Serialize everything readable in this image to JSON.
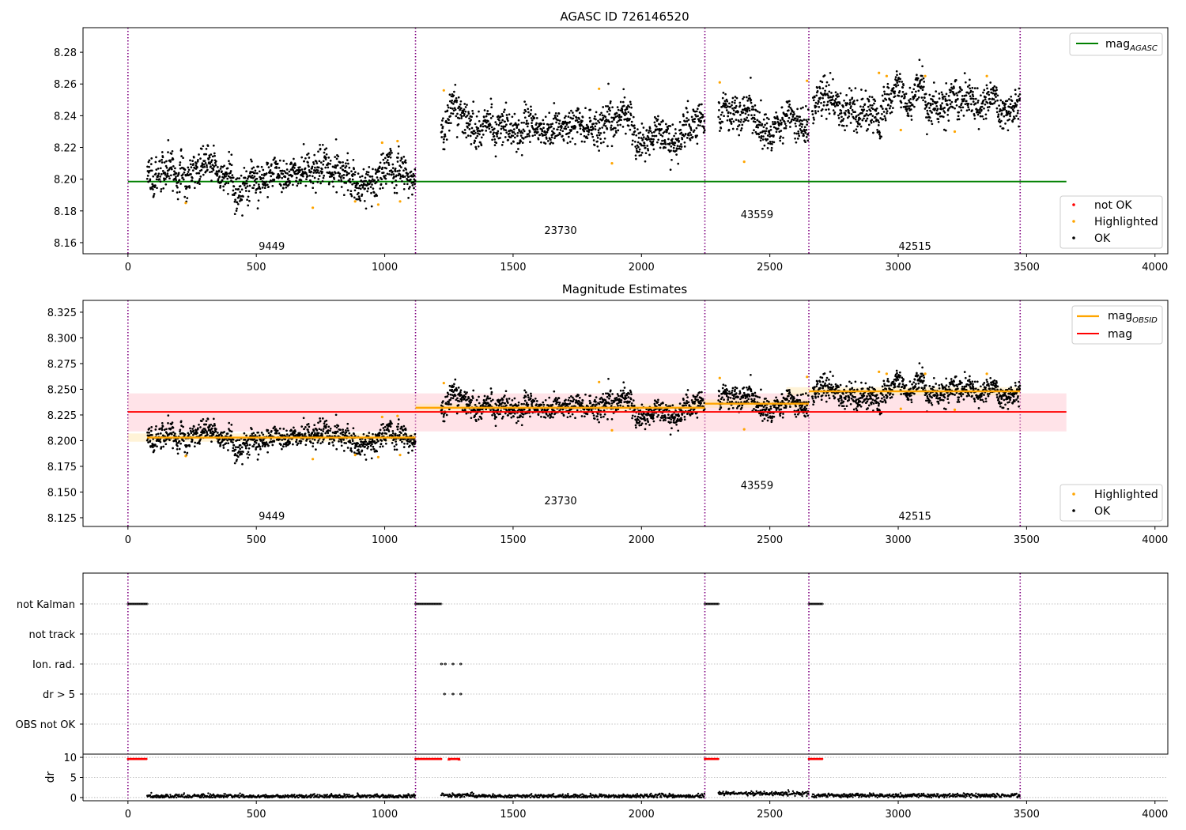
{
  "colors": {
    "ok": "#000000",
    "highlighted": "#ffa500",
    "not_ok": "#ff0000",
    "agasc": "#008000",
    "obsid": "#ffa500",
    "mag": "#ff0000",
    "obs_line": "#800080",
    "band": "#ffc0cb"
  },
  "chart_data": [
    {
      "type": "scatter",
      "title": "AGASC ID 726146520",
      "xlim": [
        -175,
        4050
      ],
      "ylim": [
        8.153,
        8.2955
      ],
      "xticks": [
        0,
        500,
        1000,
        1500,
        2000,
        2500,
        3000,
        3500,
        4000
      ],
      "yticks": [
        8.16,
        8.18,
        8.2,
        8.22,
        8.24,
        8.26,
        8.28
      ],
      "obs_boundaries": [
        0,
        1120,
        2247,
        2652,
        3475
      ],
      "obs_segments": [
        {
          "start": 75,
          "end": 1120,
          "mag": 8.203
        },
        {
          "start": 1220,
          "end": 2247,
          "mag": 8.232
        },
        {
          "start": 2300,
          "end": 2652,
          "mag": 8.236
        },
        {
          "start": 2665,
          "end": 3475,
          "mag": 8.248
        }
      ],
      "obsids": [
        {
          "label": "9449",
          "x": 560,
          "y": 8.158
        },
        {
          "label": "23730",
          "x": 1685,
          "y": 8.168
        },
        {
          "label": "43559",
          "x": 2450,
          "y": 8.178
        },
        {
          "label": "42515",
          "x": 3065,
          "y": 8.158
        }
      ],
      "agasc_mag": {
        "value": 8.1985,
        "x_end": 3655
      },
      "highlighted_points": [
        [
          225,
          8.185
        ],
        [
          720,
          8.182
        ],
        [
          885,
          8.186
        ],
        [
          975,
          8.184
        ],
        [
          990,
          8.223
        ],
        [
          1050,
          8.224
        ],
        [
          1060,
          8.186
        ],
        [
          1230,
          8.256
        ],
        [
          1835,
          8.257
        ],
        [
          1885,
          8.21
        ],
        [
          2305,
          8.261
        ],
        [
          2400,
          8.211
        ],
        [
          2645,
          8.262
        ],
        [
          2925,
          8.267
        ],
        [
          2955,
          8.265
        ],
        [
          3010,
          8.231
        ],
        [
          3105,
          8.265
        ],
        [
          3220,
          8.23
        ],
        [
          3345,
          8.265
        ]
      ],
      "legend_lines": [
        {
          "label": "mag",
          "sub": "AGASC"
        }
      ],
      "legend_points": [
        "not OK",
        "Highlighted",
        "OK"
      ]
    },
    {
      "type": "scatter",
      "title": "Magnitude Estimates",
      "xlim": [
        -175,
        4050
      ],
      "ylim": [
        8.1165,
        8.3365
      ],
      "xticks": [
        0,
        500,
        1000,
        1500,
        2000,
        2500,
        3000,
        3500,
        4000
      ],
      "yticks": [
        8.125,
        8.15,
        8.175,
        8.2,
        8.225,
        8.25,
        8.275,
        8.3,
        8.325
      ],
      "mag": {
        "value": 8.228,
        "band": [
          8.209,
          8.246
        ],
        "x_end": 3655
      },
      "obsids": [
        {
          "label": "9449",
          "x": 560,
          "y": 8.127
        },
        {
          "label": "23730",
          "x": 1685,
          "y": 8.142
        },
        {
          "label": "43559",
          "x": 2450,
          "y": 8.157
        },
        {
          "label": "42515",
          "x": 3065,
          "y": 8.127
        }
      ],
      "legend_lines": [
        {
          "label": "mag",
          "sub": "OBSID"
        },
        {
          "label": "mag",
          "sub": ""
        }
      ],
      "legend_points": [
        "Highlighted",
        "OK"
      ]
    },
    {
      "type": "scatter",
      "title": "",
      "flag_labels": [
        "not Kalman",
        "not track",
        "Ion. rad.",
        "dr > 5",
        "OBS not OK"
      ],
      "flag_intervals": {
        "not Kalman": [
          [
            0,
            75
          ],
          [
            1120,
            1220
          ],
          [
            2247,
            2300
          ],
          [
            2652,
            2705
          ]
        ],
        "not track": [],
        "Ion. rad.": [
          [
            1220,
            1222
          ],
          [
            1235,
            1237
          ],
          [
            1265,
            1267
          ],
          [
            1295,
            1297
          ]
        ],
        "dr > 5": [
          [
            1232,
            1234
          ],
          [
            1265,
            1267
          ],
          [
            1295,
            1297
          ]
        ],
        "OBS not OK": []
      },
      "dr_ylabel": "dr",
      "dr_yticks": [
        0,
        5,
        10
      ],
      "dr_ylim": [
        -0.8,
        10.8
      ],
      "xticks": [
        0,
        500,
        1000,
        1500,
        2000,
        2500,
        3000,
        3500,
        4000
      ],
      "dr_red_points_x": [
        0,
        75,
        1120,
        1220,
        1250,
        1290,
        2247,
        2300,
        2652,
        2705
      ],
      "dr_red_value": 9.6
    }
  ]
}
